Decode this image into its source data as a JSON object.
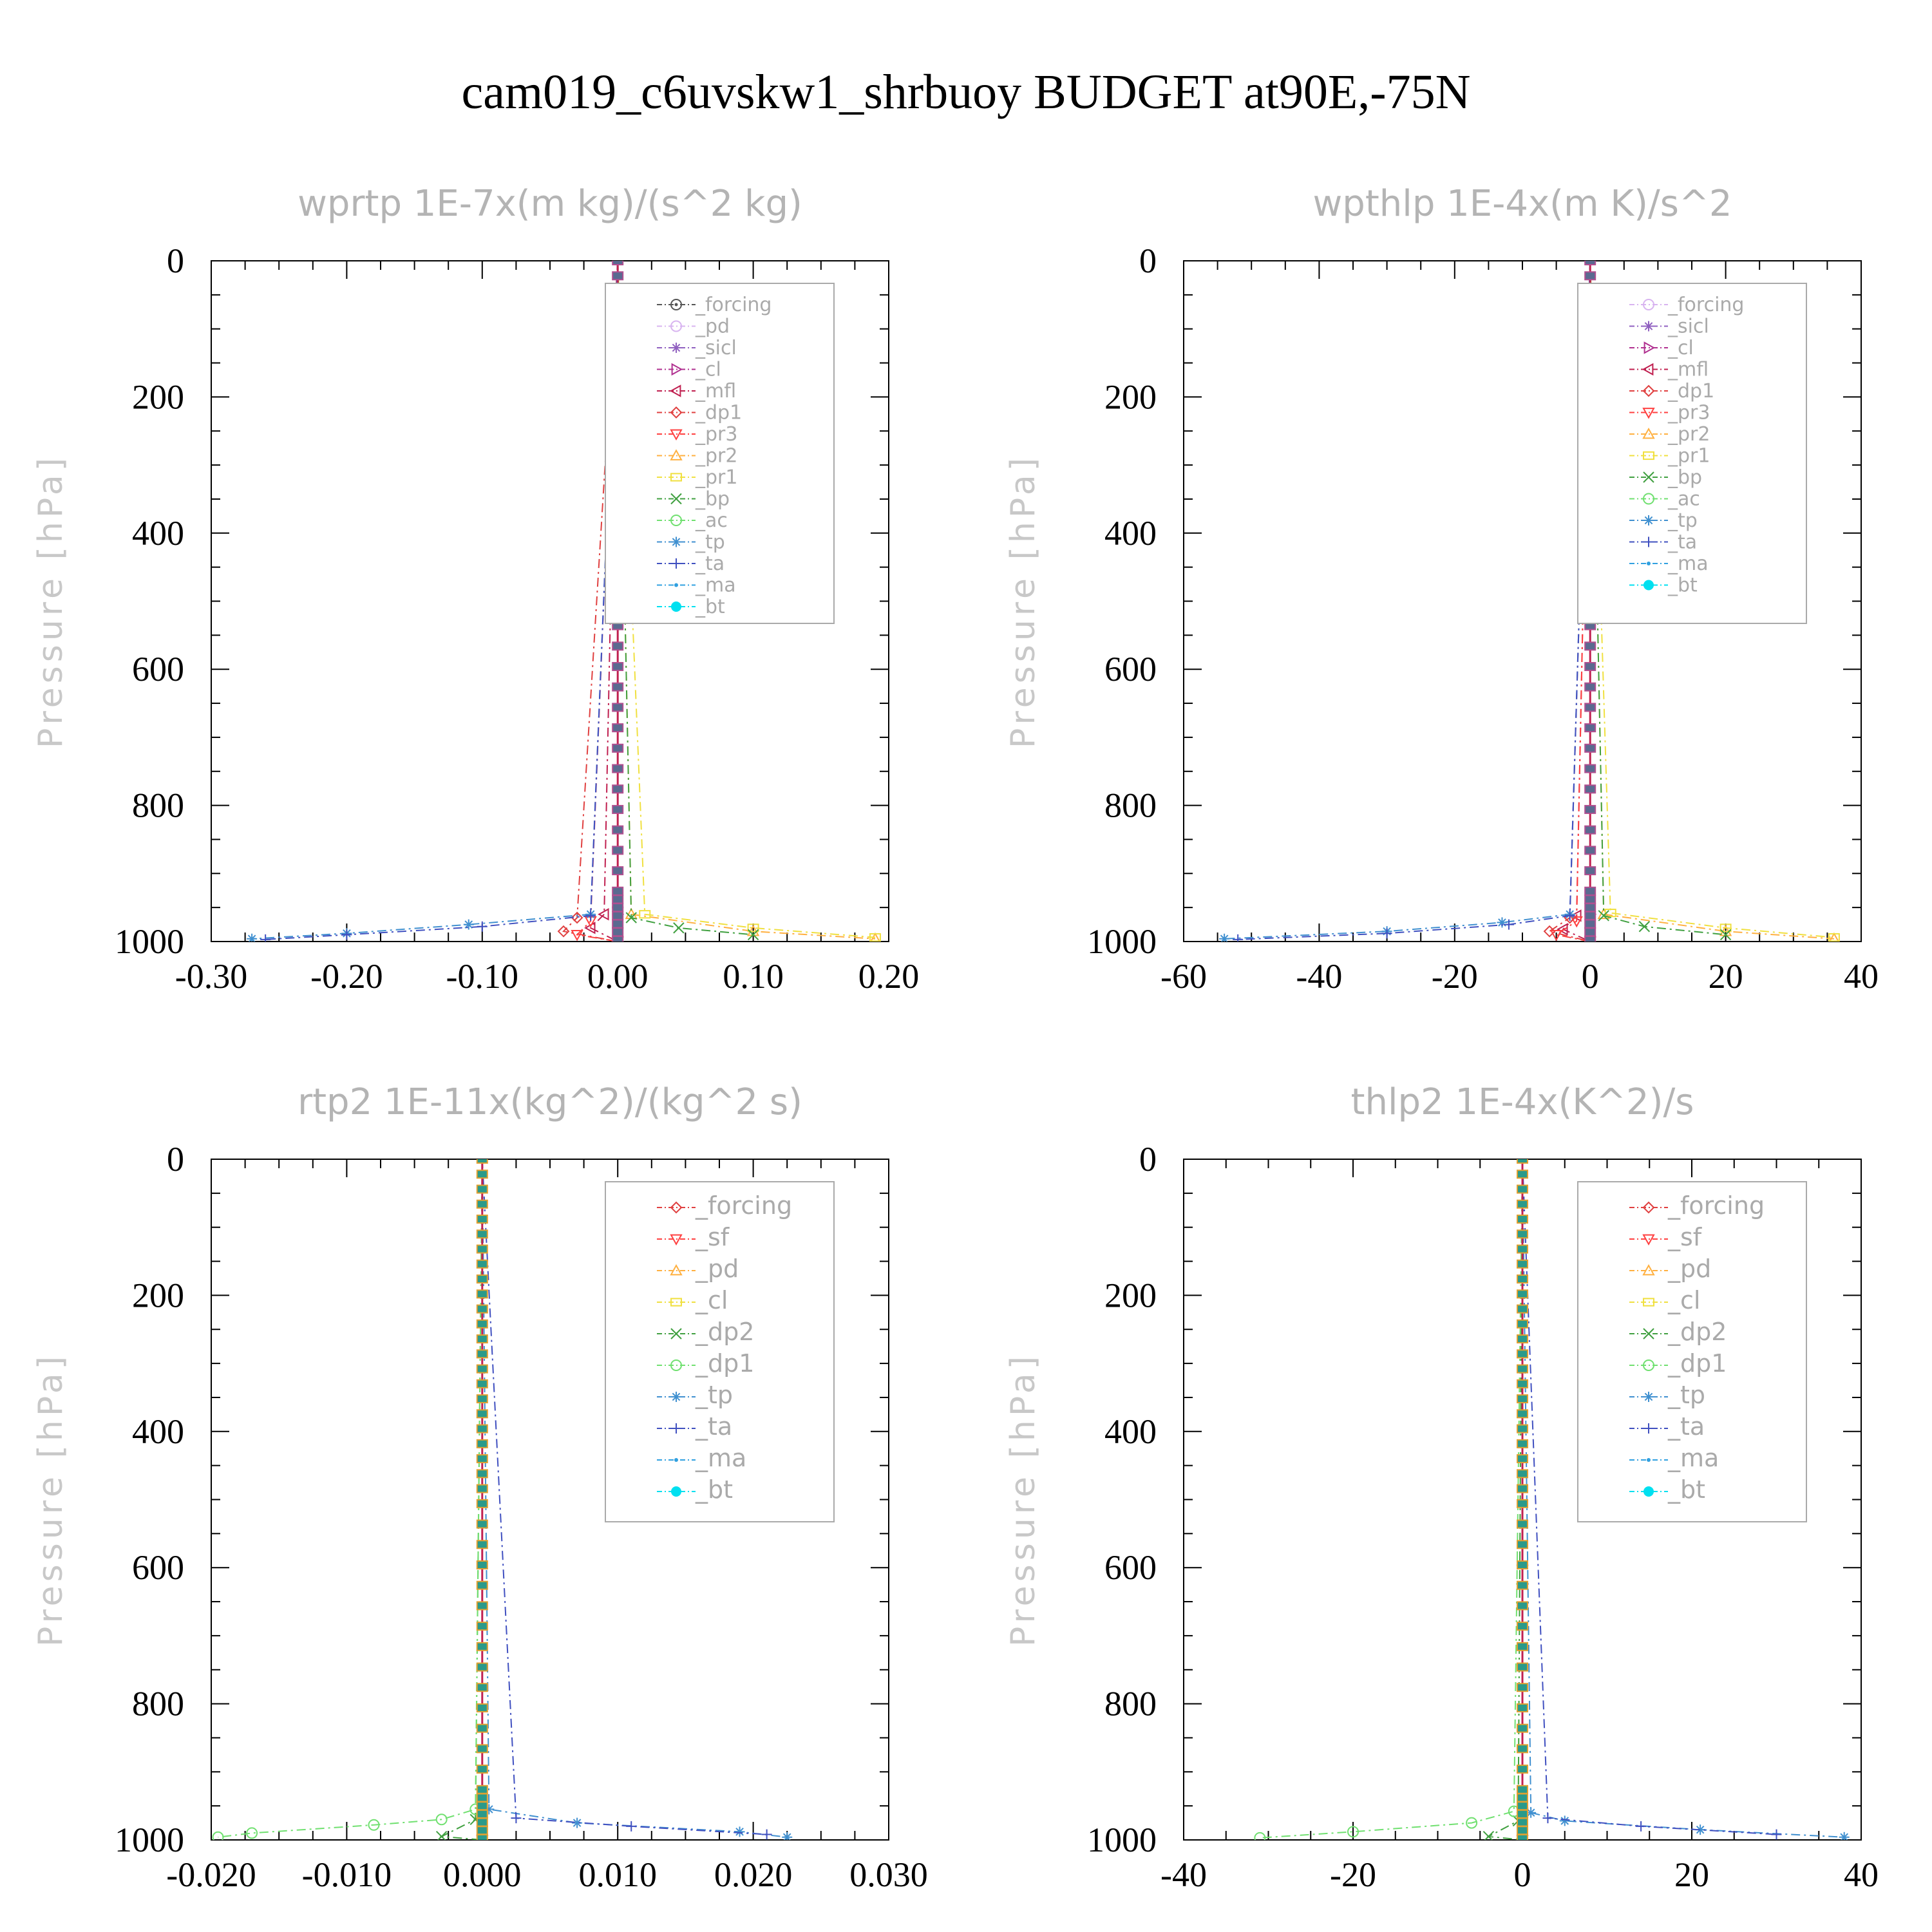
{
  "title": "cam019_c6uvskw1_shrbuoy  BUDGET at90E,-75N",
  "chart_data": [
    {
      "type": "line",
      "title": "wprtp  1E-7x(m kg)/(s^2 kg)",
      "ylabel": "Pressure [hPa]",
      "xlim": [
        -0.3,
        0.2
      ],
      "ylim": [
        0,
        1000
      ],
      "y_inverted": true,
      "xticks": [
        "-0.30",
        "-0.20",
        "-0.10",
        "0.00",
        "0.10",
        "0.20"
      ],
      "yticks": [
        "0",
        "200",
        "400",
        "600",
        "800",
        "1000"
      ],
      "legend_position": "top-right",
      "series": [
        {
          "name": "_forcing",
          "color": "#555555",
          "marker": "circle-dot",
          "x": [
            0,
            0,
            0
          ],
          "y": [
            0,
            950,
            1000
          ]
        },
        {
          "name": "_pd",
          "color": "#d8b4f0",
          "marker": "circle",
          "x": [
            0,
            0,
            0
          ],
          "y": [
            0,
            960,
            1000
          ]
        },
        {
          "name": "_sicl",
          "color": "#9060c0",
          "marker": "star",
          "x": [
            0,
            0,
            0
          ],
          "y": [
            0,
            960,
            1000
          ]
        },
        {
          "name": "_cl",
          "color": "#b03090",
          "marker": "tri-right",
          "x": [
            0,
            0,
            0
          ],
          "y": [
            0,
            960,
            1000
          ]
        },
        {
          "name": "_mfl",
          "color": "#c02050",
          "marker": "tri-left",
          "x": [
            0,
            -0.01,
            -0.02,
            0
          ],
          "y": [
            0,
            960,
            980,
            1000
          ]
        },
        {
          "name": "_dp1",
          "color": "#e04040",
          "marker": "diamond",
          "x": [
            0,
            -0.03,
            -0.04,
            0
          ],
          "y": [
            0,
            965,
            985,
            1000
          ]
        },
        {
          "name": "_pr3",
          "color": "#ff4040",
          "marker": "tri-down",
          "x": [
            0,
            -0.02,
            -0.03,
            0
          ],
          "y": [
            0,
            970,
            990,
            1000
          ]
        },
        {
          "name": "_pr2",
          "color": "#ffb040",
          "marker": "tri-up",
          "x": [
            0,
            0.01,
            0.1,
            0.19
          ],
          "y": [
            0,
            960,
            985,
            996
          ]
        },
        {
          "name": "_pr1",
          "color": "#f0e040",
          "marker": "square",
          "x": [
            0,
            0.02,
            0.1,
            0.19
          ],
          "y": [
            0,
            960,
            980,
            994
          ]
        },
        {
          "name": "_bp",
          "color": "#40a040",
          "marker": "x",
          "x": [
            0,
            0.01,
            0.045,
            0.1
          ],
          "y": [
            0,
            965,
            980,
            990
          ]
        },
        {
          "name": "_ac",
          "color": "#70e070",
          "marker": "circle",
          "x": [
            0,
            0,
            0
          ],
          "y": [
            0,
            980,
            1000
          ]
        },
        {
          "name": "_tp",
          "color": "#4090d0",
          "marker": "asterisk",
          "x": [
            0,
            -0.02,
            -0.11,
            -0.2,
            -0.27
          ],
          "y": [
            0,
            960,
            975,
            988,
            996
          ]
        },
        {
          "name": "_ta",
          "color": "#4050c0",
          "marker": "plus",
          "x": [
            0,
            -0.02,
            -0.1,
            -0.2,
            -0.26
          ],
          "y": [
            0,
            962,
            978,
            990,
            997
          ]
        },
        {
          "name": "_ma",
          "color": "#30a0e0",
          "marker": "dot",
          "x": [
            0,
            0,
            0
          ],
          "y": [
            0,
            980,
            1000
          ]
        },
        {
          "name": "_bt",
          "color": "#00e0f0",
          "marker": "filled-circle",
          "x": [
            0,
            0,
            0
          ],
          "y": [
            0,
            980,
            1000
          ]
        }
      ]
    },
    {
      "type": "line",
      "title": "wpthlp  1E-4x(m K)/s^2",
      "ylabel": "Pressure [hPa]",
      "xlim": [
        -60,
        40
      ],
      "ylim": [
        0,
        1000
      ],
      "y_inverted": true,
      "xticks": [
        "-60",
        "-40",
        "-20",
        "0",
        "20",
        "40"
      ],
      "yticks": [
        "0",
        "200",
        "400",
        "600",
        "800",
        "1000"
      ],
      "legend_position": "top-right",
      "series": [
        {
          "name": "_forcing",
          "color": "#d8b4f0",
          "marker": "circle",
          "x": [
            0,
            0,
            0
          ],
          "y": [
            0,
            960,
            1000
          ]
        },
        {
          "name": "_sicl",
          "color": "#9060c0",
          "marker": "star",
          "x": [
            0,
            0,
            0
          ],
          "y": [
            0,
            960,
            1000
          ]
        },
        {
          "name": "_cl",
          "color": "#b03090",
          "marker": "tri-right",
          "x": [
            0,
            0,
            0
          ],
          "y": [
            0,
            960,
            1000
          ]
        },
        {
          "name": "_mfl",
          "color": "#c02050",
          "marker": "tri-left",
          "x": [
            0,
            -2,
            -4,
            0
          ],
          "y": [
            0,
            962,
            982,
            1000
          ]
        },
        {
          "name": "_dp1",
          "color": "#e04040",
          "marker": "diamond",
          "x": [
            0,
            -3,
            -6,
            0
          ],
          "y": [
            0,
            965,
            985,
            1000
          ]
        },
        {
          "name": "_pr3",
          "color": "#ff4040",
          "marker": "tri-down",
          "x": [
            0,
            -2,
            -5,
            0
          ],
          "y": [
            0,
            970,
            990,
            1000
          ]
        },
        {
          "name": "_pr2",
          "color": "#ffb040",
          "marker": "tri-up",
          "x": [
            0,
            2,
            20,
            36
          ],
          "y": [
            0,
            960,
            985,
            996
          ]
        },
        {
          "name": "_pr1",
          "color": "#f0e040",
          "marker": "square",
          "x": [
            0,
            3,
            20,
            36
          ],
          "y": [
            0,
            958,
            980,
            994
          ]
        },
        {
          "name": "_bp",
          "color": "#40a040",
          "marker": "x",
          "x": [
            0,
            2,
            8,
            20
          ],
          "y": [
            0,
            962,
            978,
            990
          ]
        },
        {
          "name": "_ac",
          "color": "#70e070",
          "marker": "circle",
          "x": [
            0,
            0,
            0
          ],
          "y": [
            0,
            980,
            1000
          ]
        },
        {
          "name": "_tp",
          "color": "#4090d0",
          "marker": "asterisk",
          "x": [
            0,
            -3,
            -13,
            -30,
            -54
          ],
          "y": [
            0,
            960,
            972,
            985,
            996
          ]
        },
        {
          "name": "_ta",
          "color": "#4050c0",
          "marker": "plus",
          "x": [
            0,
            -3,
            -12,
            -30,
            -52
          ],
          "y": [
            0,
            962,
            975,
            988,
            997
          ]
        },
        {
          "name": "_ma",
          "color": "#30a0e0",
          "marker": "dot",
          "x": [
            0,
            0,
            0
          ],
          "y": [
            0,
            980,
            1000
          ]
        },
        {
          "name": "_bt",
          "color": "#00e0f0",
          "marker": "filled-circle",
          "x": [
            0,
            0,
            0
          ],
          "y": [
            0,
            980,
            1000
          ]
        }
      ]
    },
    {
      "type": "line",
      "title": "rtp2  1E-11x(kg^2)/(kg^2 s)",
      "ylabel": "Pressure [hPa]",
      "xlim": [
        -0.02,
        0.03
      ],
      "ylim": [
        0,
        1000
      ],
      "y_inverted": true,
      "xticks": [
        "-0.020",
        "-0.010",
        "0.000",
        "0.010",
        "0.020",
        "0.030"
      ],
      "yticks": [
        "0",
        "200",
        "400",
        "600",
        "800",
        "1000"
      ],
      "legend_position": "top-right",
      "series": [
        {
          "name": "_forcing",
          "color": "#e04040",
          "marker": "diamond",
          "x": [
            0,
            0,
            0
          ],
          "y": [
            0,
            960,
            1000
          ]
        },
        {
          "name": "_sf",
          "color": "#ff4040",
          "marker": "tri-down",
          "x": [
            0,
            0,
            0
          ],
          "y": [
            0,
            960,
            1000
          ]
        },
        {
          "name": "_pd",
          "color": "#ffb040",
          "marker": "tri-up",
          "x": [
            0,
            0,
            0
          ],
          "y": [
            0,
            960,
            1000
          ]
        },
        {
          "name": "_cl",
          "color": "#f0e040",
          "marker": "square",
          "x": [
            0,
            0,
            0
          ],
          "y": [
            0,
            960,
            1000
          ]
        },
        {
          "name": "_dp2",
          "color": "#40a040",
          "marker": "x",
          "x": [
            0,
            -0.0005,
            -0.003,
            0
          ],
          "y": [
            0,
            970,
            995,
            1000
          ]
        },
        {
          "name": "_dp1",
          "color": "#70e070",
          "marker": "circle",
          "x": [
            0,
            -0.0005,
            -0.003,
            -0.008,
            -0.017,
            -0.0195
          ],
          "y": [
            0,
            955,
            970,
            978,
            990,
            996
          ]
        },
        {
          "name": "_tp",
          "color": "#4090d0",
          "marker": "asterisk",
          "x": [
            0,
            0.0005,
            0.007,
            0.019,
            0.0225
          ],
          "y": [
            0,
            955,
            975,
            988,
            996
          ]
        },
        {
          "name": "_ta",
          "color": "#4050c0",
          "marker": "plus",
          "x": [
            0,
            0.0025,
            0.011,
            0.021
          ],
          "y": [
            0,
            968,
            980,
            992
          ]
        },
        {
          "name": "_ma",
          "color": "#30a0e0",
          "marker": "dot",
          "x": [
            0,
            0,
            0
          ],
          "y": [
            0,
            980,
            1000
          ]
        },
        {
          "name": "_bt",
          "color": "#00e0f0",
          "marker": "filled-circle",
          "x": [
            0,
            0,
            0
          ],
          "y": [
            0,
            980,
            1000
          ]
        }
      ]
    },
    {
      "type": "line",
      "title": "thlp2  1E-4x(K^2)/s",
      "ylabel": "Pressure [hPa]",
      "xlim": [
        -40,
        40
      ],
      "ylim": [
        0,
        1000
      ],
      "y_inverted": true,
      "xticks": [
        "-40",
        "-20",
        "0",
        "20",
        "40"
      ],
      "yticks": [
        "0",
        "200",
        "400",
        "600",
        "800",
        "1000"
      ],
      "legend_position": "top-right",
      "series": [
        {
          "name": "_forcing",
          "color": "#e04040",
          "marker": "diamond",
          "x": [
            0,
            0,
            0
          ],
          "y": [
            0,
            960,
            1000
          ]
        },
        {
          "name": "_sf",
          "color": "#ff4040",
          "marker": "tri-down",
          "x": [
            0,
            0,
            0
          ],
          "y": [
            0,
            960,
            1000
          ]
        },
        {
          "name": "_pd",
          "color": "#ffb040",
          "marker": "tri-up",
          "x": [
            0,
            0,
            0
          ],
          "y": [
            0,
            960,
            1000
          ]
        },
        {
          "name": "_cl",
          "color": "#f0e040",
          "marker": "square",
          "x": [
            0,
            0,
            0
          ],
          "y": [
            0,
            960,
            1000
          ]
        },
        {
          "name": "_dp2",
          "color": "#40a040",
          "marker": "x",
          "x": [
            0,
            -0.5,
            -4,
            0
          ],
          "y": [
            0,
            972,
            995,
            1000
          ]
        },
        {
          "name": "_dp1",
          "color": "#70e070",
          "marker": "circle",
          "x": [
            0,
            -1,
            -6,
            -20,
            -31
          ],
          "y": [
            0,
            958,
            975,
            988,
            997
          ]
        },
        {
          "name": "_tp",
          "color": "#4090d0",
          "marker": "asterisk",
          "x": [
            0,
            1,
            5,
            21,
            38
          ],
          "y": [
            0,
            960,
            972,
            985,
            996
          ]
        },
        {
          "name": "_ta",
          "color": "#4050c0",
          "marker": "plus",
          "x": [
            0,
            3,
            14,
            30
          ],
          "y": [
            0,
            968,
            980,
            992
          ]
        },
        {
          "name": "_ma",
          "color": "#30a0e0",
          "marker": "dot",
          "x": [
            0,
            0,
            0
          ],
          "y": [
            0,
            980,
            1000
          ]
        },
        {
          "name": "_bt",
          "color": "#00e0f0",
          "marker": "filled-circle",
          "x": [
            0,
            0,
            0
          ],
          "y": [
            0,
            980,
            1000
          ]
        }
      ]
    }
  ]
}
